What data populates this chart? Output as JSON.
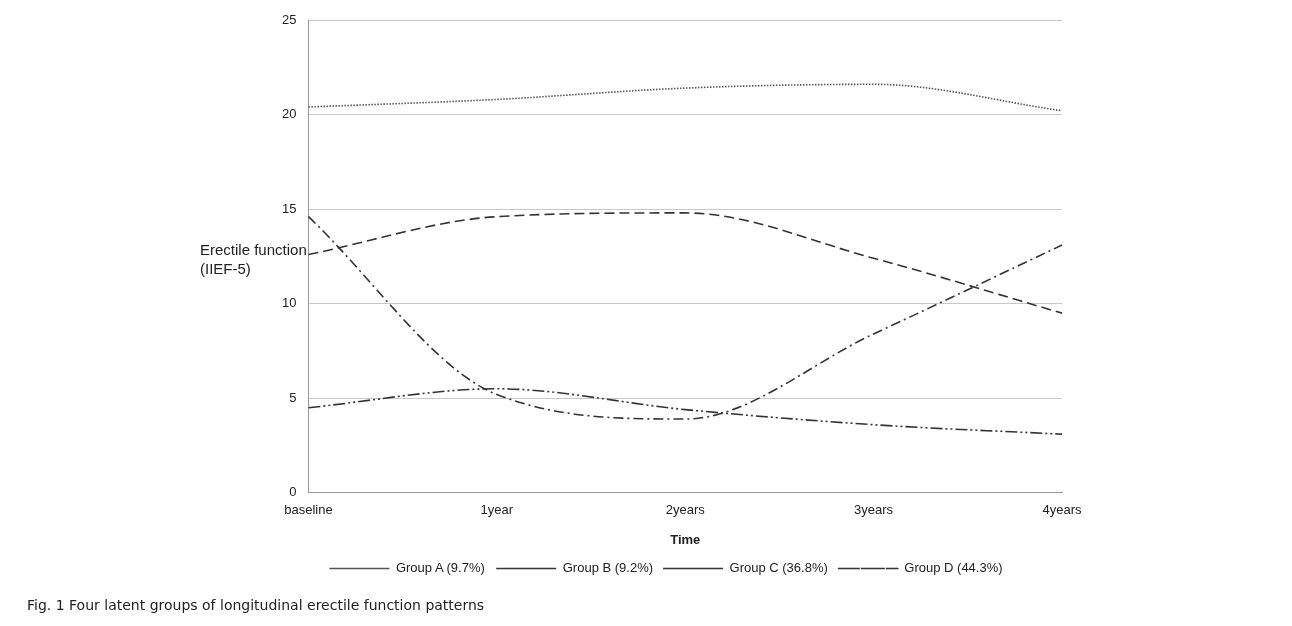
{
  "chart_data": {
    "type": "line",
    "xlabel": "Time",
    "ylabel": "Erectile function (IIEF-5)",
    "categories": [
      "baseline",
      "1year",
      "2years",
      "3years",
      "4years"
    ],
    "series": [
      {
        "name": "Group A (9.7%)",
        "color": "#555555",
        "line_style": "dotted",
        "values": [
          20.4,
          20.8,
          21.4,
          21.6,
          20.2
        ]
      },
      {
        "name": "Group B (9.2%)",
        "color": "#333333",
        "line_style": "dashed",
        "values": [
          14.6,
          5.2,
          3.9,
          8.4,
          13.1
        ]
      },
      {
        "name": "Group C (36.8%)",
        "color": "#333333",
        "line_style": "dashed",
        "values": [
          12.6,
          14.6,
          14.8,
          12.4,
          9.5
        ]
      },
      {
        "name": "Group D (44.3%)",
        "color": "#333333",
        "line_style": "dashed",
        "values": [
          4.5,
          5.5,
          4.4,
          3.6,
          3.1
        ]
      }
    ],
    "ylim": [
      0,
      25
    ],
    "yticks": [
      0,
      5,
      10,
      15,
      20,
      25
    ],
    "grid": "y",
    "legend": "bottom",
    "marker": "none",
    "annotations": [
      "Fig. 1 Four latent groups of longitudinal erectile function patterns"
    ]
  }
}
